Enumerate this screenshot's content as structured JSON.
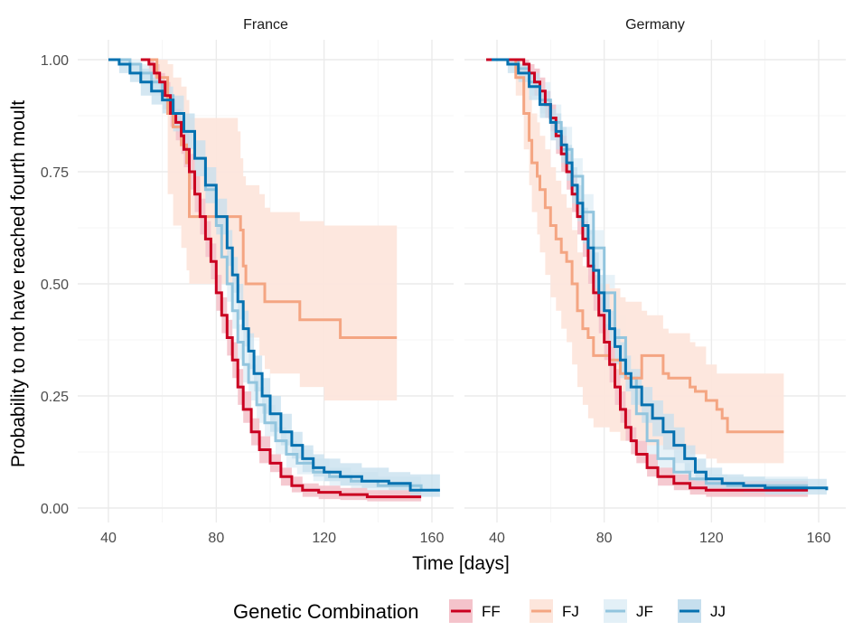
{
  "chart_data": {
    "type": "line",
    "subtype": "kaplan-meier step survival curves with confidence bands, faceted",
    "xlabel": "Time [days]",
    "ylabel": "Probability to not have reached fourth moult",
    "xlim": [
      32,
      166
    ],
    "ylim": [
      -0.03,
      1.03
    ],
    "x_ticks": [
      40,
      80,
      120,
      160
    ],
    "x_tick_labels": [
      "40",
      "80",
      "120",
      "160"
    ],
    "y_ticks": [
      0,
      0.25,
      0.5,
      0.75,
      1.0
    ],
    "y_tick_labels": [
      "0.00",
      "0.25",
      "0.50",
      "0.75",
      "1.00"
    ],
    "grid": true,
    "legend": {
      "title": "Genetic Combination",
      "position": "bottom",
      "entries": [
        "FF",
        "FJ",
        "JF",
        "JJ"
      ]
    },
    "series_colors": {
      "FF": "#ca0020",
      "FJ": "#f4a582",
      "JF": "#92c5de",
      "JJ": "#0571b0"
    },
    "band_colors": {
      "FF": "#f4c3cb",
      "FJ": "#fde6dc",
      "JF": "#e3f0f7",
      "JJ": "#c6dfee"
    },
    "panels": [
      {
        "title": "France",
        "series": [
          {
            "name": "FF",
            "x": [
              52,
              55,
              57,
              59,
              61,
              63,
              65,
              67,
              68,
              70,
              72,
              74,
              76,
              78,
              80,
              82,
              84,
              86,
              88,
              90,
              93,
              96,
              100,
              104,
              108,
              112,
              118,
              126,
              136,
              156
            ],
            "y": [
              1.0,
              0.99,
              0.97,
              0.95,
              0.92,
              0.88,
              0.86,
              0.83,
              0.8,
              0.75,
              0.7,
              0.65,
              0.6,
              0.55,
              0.48,
              0.43,
              0.38,
              0.33,
              0.27,
              0.22,
              0.17,
              0.13,
              0.1,
              0.07,
              0.05,
              0.04,
              0.035,
              0.03,
              0.025,
              0.025
            ],
            "lower": [
              1.0,
              0.97,
              0.95,
              0.92,
              0.89,
              0.85,
              0.82,
              0.79,
              0.76,
              0.71,
              0.66,
              0.61,
              0.56,
              0.51,
              0.44,
              0.39,
              0.34,
              0.29,
              0.23,
              0.19,
              0.14,
              0.1,
              0.08,
              0.05,
              0.035,
              0.025,
              0.02,
              0.018,
              0.015,
              0.015
            ],
            "upper": [
              1.0,
              1.0,
              0.99,
              0.97,
              0.95,
              0.91,
              0.89,
              0.87,
              0.84,
              0.79,
              0.74,
              0.69,
              0.64,
              0.59,
              0.52,
              0.47,
              0.42,
              0.37,
              0.31,
              0.26,
              0.2,
              0.16,
              0.12,
              0.09,
              0.07,
              0.055,
              0.05,
              0.045,
              0.04,
              0.04
            ]
          },
          {
            "name": "FJ",
            "x": [
              55,
              58,
              62,
              64,
              67,
              69,
              70,
              88,
              89,
              90,
              91,
              96,
              98,
              100,
              111,
              120,
              126,
              147
            ],
            "y": [
              1.0,
              0.96,
              0.88,
              0.85,
              0.81,
              0.77,
              0.65,
              0.65,
              0.62,
              0.54,
              0.5,
              0.5,
              0.46,
              0.46,
              0.42,
              0.42,
              0.38,
              0.38
            ],
            "lower": [
              1.0,
              0.95,
              0.7,
              0.63,
              0.58,
              0.53,
              0.5,
              0.48,
              0.46,
              0.42,
              0.38,
              0.34,
              0.31,
              0.3,
              0.27,
              0.24,
              0.24,
              0.24
            ],
            "upper": [
              1.0,
              1.0,
              0.99,
              0.96,
              0.94,
              0.91,
              0.87,
              0.84,
              0.78,
              0.74,
              0.72,
              0.7,
              0.67,
              0.66,
              0.64,
              0.63,
              0.63,
              0.63
            ]
          },
          {
            "name": "JF",
            "x": [
              44,
              48,
              52,
              56,
              60,
              64,
              68,
              72,
              76,
              80,
              82,
              84,
              86,
              88,
              90,
              92,
              95,
              98,
              102,
              106,
              110,
              116,
              122,
              130,
              140,
              156
            ],
            "y": [
              1.0,
              0.99,
              0.97,
              0.95,
              0.92,
              0.88,
              0.84,
              0.78,
              0.71,
              0.63,
              0.56,
              0.5,
              0.44,
              0.37,
              0.32,
              0.28,
              0.23,
              0.19,
              0.15,
              0.12,
              0.1,
              0.08,
              0.07,
              0.06,
              0.05,
              0.04
            ],
            "lower": [
              1.0,
              0.97,
              0.95,
              0.92,
              0.89,
              0.85,
              0.8,
              0.74,
              0.67,
              0.59,
              0.52,
              0.46,
              0.4,
              0.33,
              0.28,
              0.24,
              0.19,
              0.16,
              0.12,
              0.09,
              0.075,
              0.06,
              0.05,
              0.04,
              0.03,
              0.03
            ],
            "upper": [
              1.0,
              1.0,
              0.99,
              0.97,
              0.95,
              0.91,
              0.88,
              0.82,
              0.75,
              0.67,
              0.6,
              0.54,
              0.48,
              0.41,
              0.36,
              0.32,
              0.27,
              0.23,
              0.18,
              0.15,
              0.13,
              0.11,
              0.09,
              0.08,
              0.07,
              0.06
            ]
          },
          {
            "name": "JJ",
            "x": [
              40,
              44,
              48,
              52,
              56,
              60,
              64,
              68,
              72,
              76,
              80,
              84,
              86,
              88,
              90,
              92,
              94,
              97,
              100,
              104,
              108,
              112,
              116,
              120,
              126,
              134,
              144,
              152,
              163
            ],
            "y": [
              1.0,
              0.99,
              0.97,
              0.95,
              0.93,
              0.91,
              0.88,
              0.84,
              0.78,
              0.72,
              0.65,
              0.58,
              0.52,
              0.46,
              0.4,
              0.35,
              0.3,
              0.25,
              0.21,
              0.17,
              0.14,
              0.11,
              0.09,
              0.08,
              0.07,
              0.06,
              0.055,
              0.04,
              0.04
            ],
            "lower": [
              1.0,
              0.97,
              0.95,
              0.92,
              0.9,
              0.88,
              0.84,
              0.8,
              0.74,
              0.68,
              0.61,
              0.54,
              0.48,
              0.42,
              0.36,
              0.31,
              0.26,
              0.21,
              0.17,
              0.14,
              0.11,
              0.08,
              0.07,
              0.06,
              0.05,
              0.045,
              0.04,
              0.025,
              0.025
            ],
            "upper": [
              1.0,
              1.0,
              0.99,
              0.98,
              0.96,
              0.94,
              0.92,
              0.88,
              0.82,
              0.76,
              0.69,
              0.62,
              0.56,
              0.5,
              0.44,
              0.39,
              0.34,
              0.29,
              0.25,
              0.21,
              0.17,
              0.14,
              0.12,
              0.11,
              0.1,
              0.09,
              0.08,
              0.075,
              0.075
            ]
          }
        ]
      },
      {
        "title": "Germany",
        "series": [
          {
            "name": "FF",
            "x": [
              36,
              50,
              52,
              54,
              56,
              58,
              60,
              62,
              64,
              66,
              68,
              70,
              72,
              74,
              76,
              78,
              80,
              82,
              84,
              86,
              88,
              90,
              92,
              96,
              100,
              106,
              112,
              118,
              156
            ],
            "y": [
              1.0,
              0.99,
              0.97,
              0.95,
              0.93,
              0.9,
              0.87,
              0.83,
              0.79,
              0.75,
              0.7,
              0.65,
              0.6,
              0.54,
              0.48,
              0.43,
              0.37,
              0.32,
              0.27,
              0.22,
              0.18,
              0.15,
              0.12,
              0.09,
              0.07,
              0.055,
              0.045,
              0.04,
              0.04
            ],
            "lower": [
              1.0,
              0.97,
              0.95,
              0.92,
              0.9,
              0.87,
              0.84,
              0.79,
              0.75,
              0.71,
              0.66,
              0.61,
              0.56,
              0.5,
              0.44,
              0.39,
              0.33,
              0.28,
              0.23,
              0.19,
              0.15,
              0.12,
              0.1,
              0.07,
              0.05,
              0.04,
              0.03,
              0.025,
              0.025
            ],
            "upper": [
              1.0,
              1.0,
              0.99,
              0.98,
              0.96,
              0.93,
              0.9,
              0.86,
              0.83,
              0.79,
              0.74,
              0.69,
              0.64,
              0.58,
              0.52,
              0.47,
              0.41,
              0.36,
              0.31,
              0.26,
              0.22,
              0.18,
              0.15,
              0.12,
              0.09,
              0.075,
              0.065,
              0.06,
              0.06
            ]
          },
          {
            "name": "FJ",
            "x": [
              44,
              47,
              50,
              52,
              53,
              55,
              56,
              58,
              60,
              62,
              64,
              66,
              68,
              70,
              72,
              74,
              76,
              82,
              86,
              88,
              94,
              96,
              102,
              104,
              112,
              114,
              118,
              122,
              124,
              126,
              147
            ],
            "y": [
              1.0,
              0.96,
              0.88,
              0.82,
              0.77,
              0.74,
              0.71,
              0.67,
              0.63,
              0.6,
              0.57,
              0.55,
              0.5,
              0.44,
              0.4,
              0.38,
              0.34,
              0.33,
              0.3,
              0.29,
              0.34,
              0.34,
              0.3,
              0.29,
              0.27,
              0.26,
              0.24,
              0.22,
              0.2,
              0.17,
              0.17
            ],
            "lower": [
              1.0,
              0.92,
              0.8,
              0.72,
              0.66,
              0.61,
              0.57,
              0.52,
              0.47,
              0.44,
              0.4,
              0.37,
              0.32,
              0.27,
              0.23,
              0.2,
              0.18,
              0.17,
              0.15,
              0.15,
              0.15,
              0.14,
              0.13,
              0.13,
              0.12,
              0.12,
              0.11,
              0.1,
              0.1,
              0.1,
              0.1
            ],
            "upper": [
              1.0,
              1.0,
              0.96,
              0.92,
              0.88,
              0.86,
              0.83,
              0.8,
              0.76,
              0.73,
              0.7,
              0.67,
              0.62,
              0.57,
              0.54,
              0.52,
              0.5,
              0.49,
              0.47,
              0.46,
              0.44,
              0.43,
              0.4,
              0.39,
              0.37,
              0.36,
              0.32,
              0.3,
              0.3,
              0.3,
              0.3
            ]
          },
          {
            "name": "JF",
            "x": [
              36,
              48,
              52,
              56,
              60,
              64,
              68,
              72,
              76,
              80,
              84,
              88,
              92,
              96,
              100,
              106,
              112,
              118,
              126,
              156
            ],
            "y": [
              1.0,
              0.98,
              0.95,
              0.91,
              0.86,
              0.8,
              0.74,
              0.66,
              0.58,
              0.48,
              0.38,
              0.29,
              0.21,
              0.15,
              0.11,
              0.08,
              0.065,
              0.055,
              0.05,
              0.05
            ],
            "lower": [
              1.0,
              0.96,
              0.92,
              0.88,
              0.82,
              0.76,
              0.69,
              0.61,
              0.53,
              0.43,
              0.33,
              0.24,
              0.17,
              0.12,
              0.08,
              0.05,
              0.04,
              0.035,
              0.03,
              0.03
            ],
            "upper": [
              1.0,
              1.0,
              0.98,
              0.95,
              0.9,
              0.85,
              0.78,
              0.7,
              0.62,
              0.52,
              0.43,
              0.34,
              0.26,
              0.19,
              0.14,
              0.1,
              0.085,
              0.075,
              0.07,
              0.07
            ]
          },
          {
            "name": "JJ",
            "x": [
              38,
              44,
              48,
              52,
              56,
              60,
              62,
              64,
              66,
              68,
              70,
              72,
              74,
              76,
              78,
              80,
              82,
              84,
              86,
              88,
              90,
              94,
              98,
              102,
              106,
              110,
              114,
              118,
              124,
              132,
              140,
              163
            ],
            "y": [
              1.0,
              0.99,
              0.97,
              0.94,
              0.9,
              0.86,
              0.84,
              0.81,
              0.77,
              0.72,
              0.68,
              0.63,
              0.58,
              0.53,
              0.48,
              0.44,
              0.4,
              0.36,
              0.33,
              0.3,
              0.27,
              0.23,
              0.2,
              0.17,
              0.14,
              0.11,
              0.08,
              0.065,
              0.055,
              0.05,
              0.045,
              0.04
            ],
            "lower": [
              1.0,
              0.97,
              0.95,
              0.91,
              0.87,
              0.82,
              0.8,
              0.77,
              0.73,
              0.68,
              0.64,
              0.59,
              0.54,
              0.49,
              0.44,
              0.4,
              0.36,
              0.32,
              0.29,
              0.26,
              0.23,
              0.19,
              0.16,
              0.13,
              0.1,
              0.08,
              0.06,
              0.045,
              0.04,
              0.035,
              0.03,
              0.03
            ],
            "upper": [
              1.0,
              1.0,
              0.99,
              0.97,
              0.93,
              0.89,
              0.88,
              0.85,
              0.81,
              0.76,
              0.72,
              0.67,
              0.62,
              0.57,
              0.52,
              0.48,
              0.44,
              0.4,
              0.37,
              0.34,
              0.31,
              0.27,
              0.24,
              0.21,
              0.18,
              0.14,
              0.11,
              0.09,
              0.075,
              0.07,
              0.065,
              0.065
            ]
          }
        ]
      }
    ]
  }
}
